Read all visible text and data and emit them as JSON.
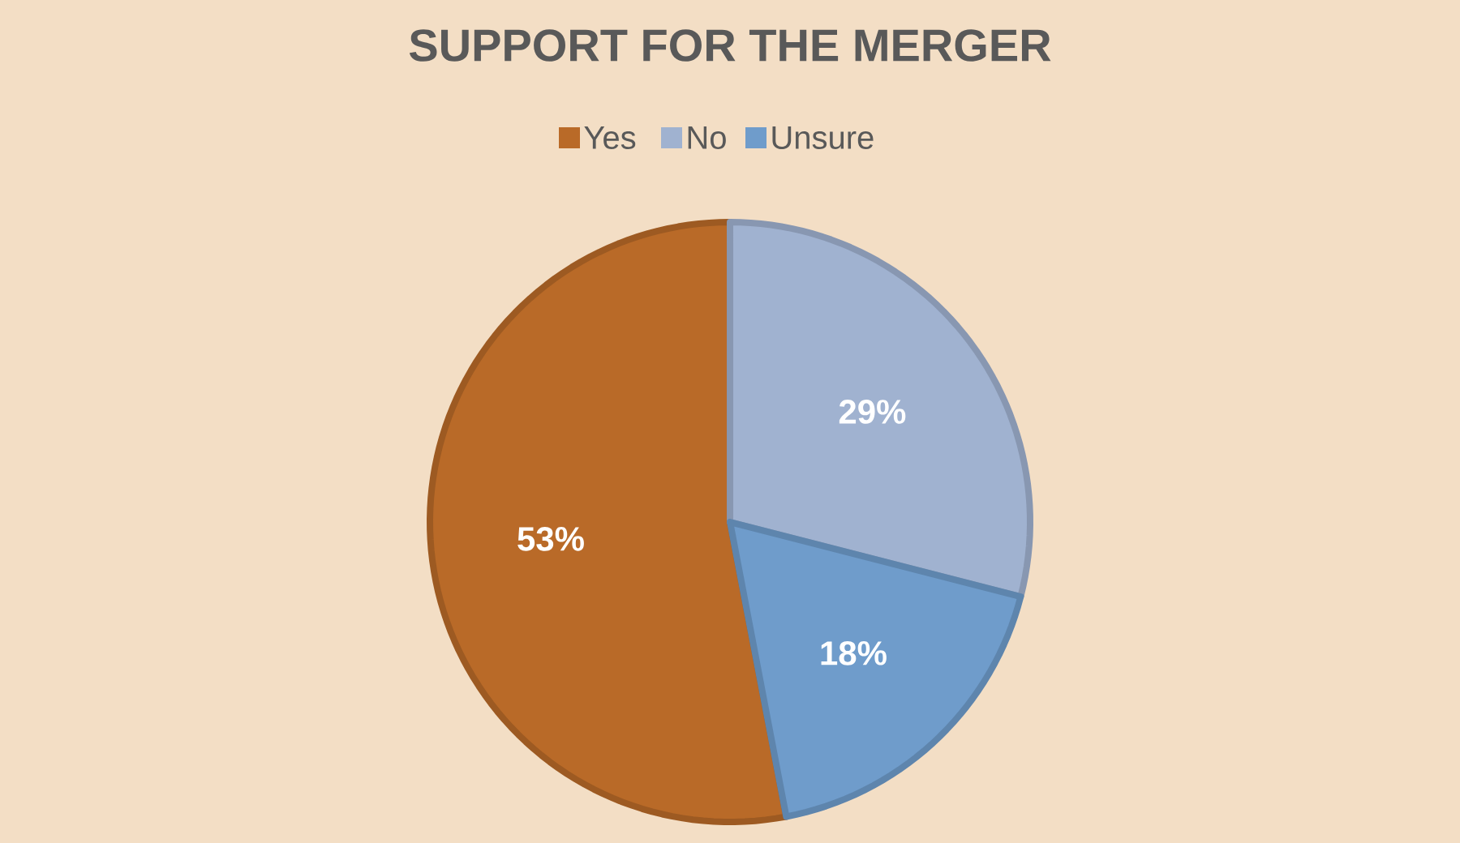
{
  "chart_data": {
    "type": "pie",
    "title": "SUPPORT FOR THE MERGER",
    "categories": [
      "Yes",
      "No",
      "Unsure"
    ],
    "values": [
      53,
      29,
      18
    ],
    "colors": [
      "#b96a28",
      "#a0b2d0",
      "#6f9ccb"
    ],
    "value_labels": [
      "53%",
      "29%",
      "18%"
    ],
    "legend": "top"
  }
}
